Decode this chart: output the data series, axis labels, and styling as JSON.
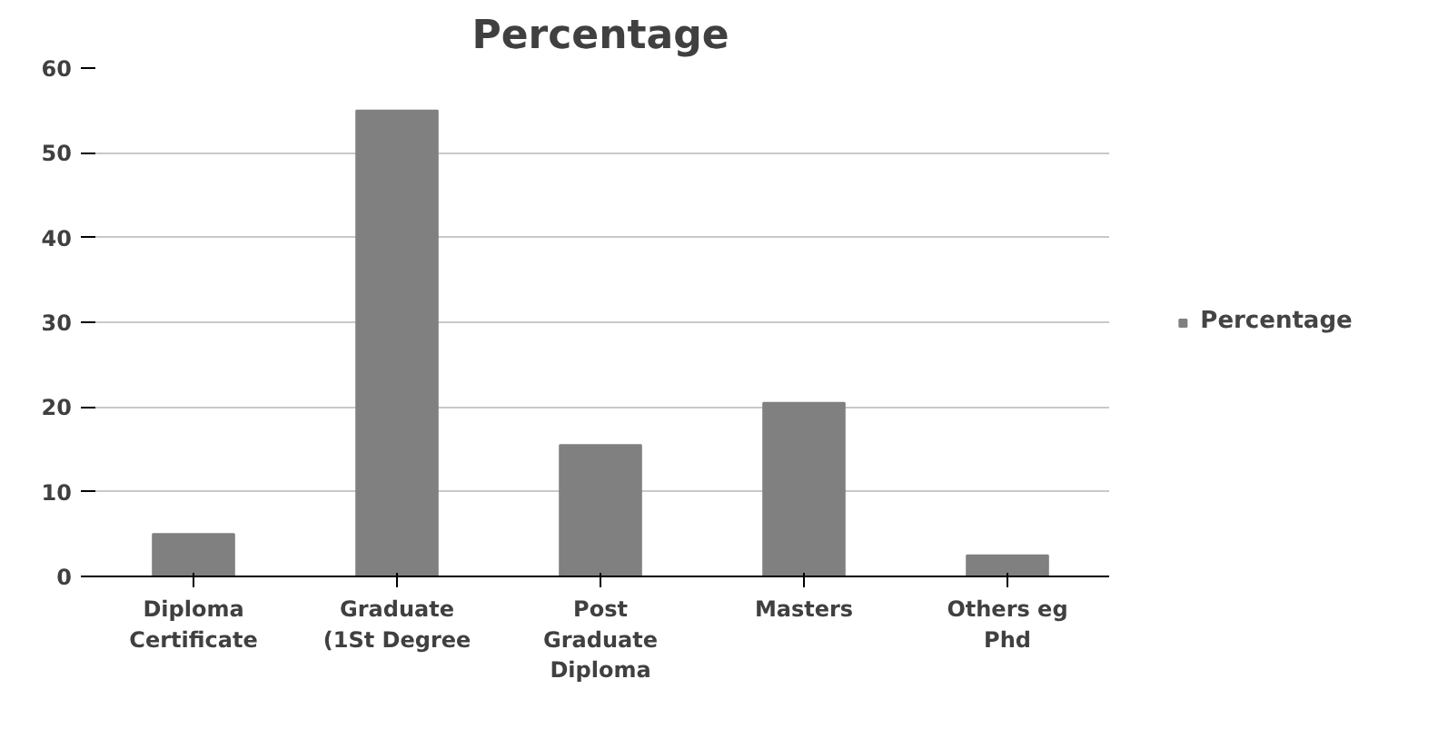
{
  "chart_data": {
    "type": "bar",
    "title": "Percentage",
    "categories": [
      "Diploma\nCertificate",
      "Graduate\n(1St Degree",
      "Post\nGraduate\nDiploma",
      "Masters",
      "Others eg\nPhd"
    ],
    "series": [
      {
        "name": "Percentage",
        "color": "#808080",
        "values": [
          5,
          55,
          15.5,
          20.5,
          2.5
        ]
      }
    ],
    "ylim": [
      0,
      60
    ],
    "yticks": [
      0,
      10,
      20,
      30,
      40,
      50,
      60
    ],
    "grid": "y",
    "legend": "right"
  }
}
